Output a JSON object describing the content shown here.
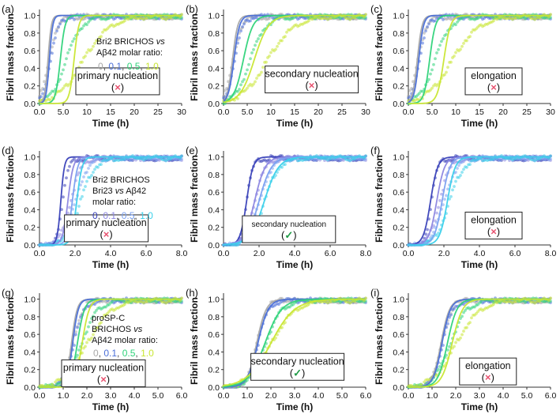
{
  "figure": {
    "ylabel": "Fibril mass fraction",
    "xlabel": "Time (h)",
    "colors": {
      "gray": "#a8a8a8",
      "blue": "#4a6fd8",
      "green": "#2fd37a",
      "yellow": "#c9e632",
      "dark_blue": "#3840b8",
      "lavender": "#8c86e0",
      "cyan": "#3bd0ea",
      "lime": "#8fe65a",
      "box_border": "#222222",
      "cross": "#e8506e",
      "check": "#1e9a45"
    }
  },
  "legends": {
    "a": {
      "line1": "Bri2 BRICHOS ",
      "vs": "vs",
      "line2": "Aβ42 molar ratio:",
      "v0": "0",
      "v1": "0.1",
      "v2": "0.5",
      "v3": "1.0",
      "sep": ", "
    },
    "d": {
      "line1": "Bri2 BRICHOS",
      "line2a": "Bri23 ",
      "vs": "vs",
      "line2b": " Aβ42",
      "line3": "molar ratio:",
      "v0": "0",
      "v1": "0.1",
      "v2": "0.5",
      "v3": "1.0",
      "sep": ", "
    },
    "g": {
      "line1": "proSP-C",
      "line2a": "BRICHOS ",
      "vs": "vs",
      "line3": "Aβ42 molar ratio:",
      "v0": "0",
      "v1": "0.1",
      "v2": "0.5",
      "v3": "1.0",
      "sep": ", "
    }
  },
  "chart_data": [
    {
      "id": "a",
      "label": "(a)",
      "type": "line",
      "model": "primary nucleation",
      "fit_ok": false,
      "mark": "×",
      "xlabel": "Time (h)",
      "ylabel": "Fibril mass fraction",
      "xlim": [
        0,
        30
      ],
      "ylim": [
        0,
        1.05
      ],
      "xticks": [
        0.0,
        5.0,
        10,
        15,
        20,
        25,
        30
      ],
      "xtick_labels": [
        "0.0",
        "5.0",
        "10",
        "15",
        "20",
        "25",
        "30"
      ],
      "yticks": [
        0.0,
        0.2,
        0.4,
        0.6,
        0.8,
        1.0
      ],
      "ytick_labels": [
        "0.0",
        "0.2",
        "0.4",
        "0.6",
        "0.8",
        "1.0"
      ],
      "series": [
        {
          "name": "0",
          "color": "#a8a8a8",
          "data_half_time": 2.0,
          "data_width": 0.9,
          "fit_half_time": 1.8,
          "fit_width": 0.35
        },
        {
          "name": "0.1",
          "color": "#4a6fd8",
          "data_half_time": 2.3,
          "data_width": 0.9,
          "fit_half_time": 2.1,
          "fit_width": 0.35
        },
        {
          "name": "0.5",
          "color": "#2fd37a",
          "data_half_time": 5.6,
          "data_width": 1.6,
          "fit_half_time": 4.4,
          "fit_width": 0.5
        },
        {
          "name": "1.0",
          "color": "#c9e632",
          "data_half_time": 9.2,
          "data_width": 2.8,
          "fit_half_time": 7.3,
          "fit_width": 0.5
        }
      ]
    },
    {
      "id": "b",
      "label": "(b)",
      "type": "line",
      "model": "secondary nucleation",
      "fit_ok": false,
      "mark": "×",
      "xlabel": "Time (h)",
      "ylabel": "Fibril mass fraction",
      "xlim": [
        0,
        30
      ],
      "ylim": [
        0,
        1.05
      ],
      "xticks": [
        0.0,
        5.0,
        10,
        15,
        20,
        25,
        30
      ],
      "xtick_labels": [
        "0.0",
        "5.0",
        "10",
        "15",
        "20",
        "25",
        "30"
      ],
      "yticks": [
        0.0,
        0.2,
        0.4,
        0.6,
        0.8,
        1.0
      ],
      "ytick_labels": [
        "0.0",
        "0.2",
        "0.4",
        "0.6",
        "0.8",
        "1.0"
      ],
      "series": [
        {
          "name": "0",
          "color": "#a8a8a8",
          "data_half_time": 2.0,
          "data_width": 0.9,
          "fit_half_time": 1.9,
          "fit_width": 0.55
        },
        {
          "name": "0.1",
          "color": "#4a6fd8",
          "data_half_time": 2.3,
          "data_width": 0.9,
          "fit_half_time": 2.2,
          "fit_width": 0.6
        },
        {
          "name": "0.5",
          "color": "#2fd37a",
          "data_half_time": 5.6,
          "data_width": 1.6,
          "fit_half_time": 4.2,
          "fit_width": 1.0
        },
        {
          "name": "1.0",
          "color": "#c9e632",
          "data_half_time": 9.2,
          "data_width": 2.8,
          "fit_half_time": 6.5,
          "fit_width": 1.5
        }
      ]
    },
    {
      "id": "c",
      "label": "(c)",
      "type": "line",
      "model": "elongation",
      "fit_ok": false,
      "mark": "×",
      "xlabel": "Time (h)",
      "ylabel": "Fibril mass fraction",
      "xlim": [
        0,
        30
      ],
      "ylim": [
        0,
        1.05
      ],
      "xticks": [
        0.0,
        5.0,
        10,
        15,
        20,
        25,
        30
      ],
      "xtick_labels": [
        "0.0",
        "5.0",
        "10",
        "15",
        "20",
        "25",
        "30"
      ],
      "yticks": [
        0.0,
        0.2,
        0.4,
        0.6,
        0.8,
        1.0
      ],
      "ytick_labels": [
        "0.0",
        "0.2",
        "0.4",
        "0.6",
        "0.8",
        "1.0"
      ],
      "series": [
        {
          "name": "0",
          "color": "#a8a8a8",
          "data_half_time": 2.0,
          "data_width": 0.9,
          "fit_half_time": 1.9,
          "fit_width": 0.5
        },
        {
          "name": "0.1",
          "color": "#4a6fd8",
          "data_half_time": 2.3,
          "data_width": 0.9,
          "fit_half_time": 2.2,
          "fit_width": 0.5
        },
        {
          "name": "0.5",
          "color": "#2fd37a",
          "data_half_time": 5.6,
          "data_width": 1.6,
          "fit_half_time": 4.5,
          "fit_width": 0.6
        },
        {
          "name": "1.0",
          "color": "#c9e632",
          "data_half_time": 9.2,
          "data_width": 2.8,
          "fit_half_time": 7.5,
          "fit_width": 0.7
        }
      ]
    },
    {
      "id": "d",
      "label": "(d)",
      "type": "line",
      "model": "primary nucleation",
      "fit_ok": false,
      "mark": "×",
      "xlabel": "Time (h)",
      "ylabel": "Fibril mass fraction",
      "xlim": [
        0,
        8
      ],
      "ylim": [
        0,
        1.05
      ],
      "xticks": [
        0.0,
        2.0,
        4.0,
        6.0,
        8.0
      ],
      "xtick_labels": [
        "0.0",
        "2.0",
        "4.0",
        "6.0",
        "8.0"
      ],
      "yticks": [
        0.0,
        0.2,
        0.4,
        0.6,
        0.8,
        1.0
      ],
      "ytick_labels": [
        "0.0",
        "0.2",
        "0.4",
        "0.6",
        "0.8",
        "1.0"
      ],
      "series": [
        {
          "name": "0",
          "color": "#3840b8",
          "data_half_time": 1.3,
          "data_width": 0.18,
          "fit_half_time": 1.2,
          "fit_width": 0.1
        },
        {
          "name": "0.1",
          "color": "#8c86e0",
          "data_half_time": 1.75,
          "data_width": 0.3,
          "fit_half_time": 1.6,
          "fit_width": 0.15
        },
        {
          "name": "0.5",
          "color": "#7aa0f0",
          "data_half_time": 2.0,
          "data_width": 0.35,
          "fit_half_time": 1.85,
          "fit_width": 0.15
        },
        {
          "name": "1.0",
          "color": "#3bd0ea",
          "data_half_time": 2.3,
          "data_width": 0.4,
          "fit_half_time": 2.1,
          "fit_width": 0.15
        }
      ]
    },
    {
      "id": "e",
      "label": "(e)",
      "type": "line",
      "model": "secondary nucleation",
      "fit_ok": true,
      "mark": "✓",
      "xlabel": "Time (h)",
      "ylabel": "Fibril mass fraction",
      "xlim": [
        0,
        8
      ],
      "ylim": [
        0,
        1.05
      ],
      "xticks": [
        0.0,
        2.0,
        4.0,
        6.0,
        8.0
      ],
      "xtick_labels": [
        "0.0",
        "2.0",
        "4.0",
        "6.0",
        "8.0"
      ],
      "yticks": [
        0.0,
        0.2,
        0.4,
        0.6,
        0.8,
        1.0
      ],
      "ytick_labels": [
        "0.0",
        "0.2",
        "0.4",
        "0.6",
        "0.8",
        "1.0"
      ],
      "series": [
        {
          "name": "0",
          "color": "#3840b8",
          "data_half_time": 1.3,
          "data_width": 0.18,
          "fit_half_time": 1.3,
          "fit_width": 0.18
        },
        {
          "name": "0.1",
          "color": "#8c86e0",
          "data_half_time": 1.75,
          "data_width": 0.3,
          "fit_half_time": 1.75,
          "fit_width": 0.3
        },
        {
          "name": "0.5",
          "color": "#7aa0f0",
          "data_half_time": 2.0,
          "data_width": 0.35,
          "fit_half_time": 2.0,
          "fit_width": 0.35
        },
        {
          "name": "1.0",
          "color": "#3bd0ea",
          "data_half_time": 2.3,
          "data_width": 0.4,
          "fit_half_time": 2.3,
          "fit_width": 0.4
        }
      ]
    },
    {
      "id": "f",
      "label": "(f)",
      "type": "line",
      "model": "elongation",
      "fit_ok": false,
      "mark": "×",
      "xlabel": "Time (h)",
      "ylabel": "Fibril mass fraction",
      "xlim": [
        0,
        8
      ],
      "ylim": [
        0,
        1.05
      ],
      "xticks": [
        0.0,
        2.0,
        4.0,
        6.0,
        8.0
      ],
      "xtick_labels": [
        "0.0",
        "2.0",
        "4.0",
        "6.0",
        "8.0"
      ],
      "yticks": [
        0.0,
        0.2,
        0.4,
        0.6,
        0.8,
        1.0
      ],
      "ytick_labels": [
        "0.0",
        "0.2",
        "0.4",
        "0.6",
        "0.8",
        "1.0"
      ],
      "series": [
        {
          "name": "0",
          "color": "#3840b8",
          "data_half_time": 1.3,
          "data_width": 0.18,
          "fit_half_time": 1.25,
          "fit_width": 0.2
        },
        {
          "name": "0.1",
          "color": "#8c86e0",
          "data_half_time": 1.75,
          "data_width": 0.3,
          "fit_half_time": 1.6,
          "fit_width": 0.22
        },
        {
          "name": "0.5",
          "color": "#7aa0f0",
          "data_half_time": 2.0,
          "data_width": 0.35,
          "fit_half_time": 1.9,
          "fit_width": 0.22
        },
        {
          "name": "1.0",
          "color": "#3bd0ea",
          "data_half_time": 2.3,
          "data_width": 0.4,
          "fit_half_time": 2.2,
          "fit_width": 0.22
        }
      ]
    },
    {
      "id": "g",
      "label": "(g)",
      "type": "line",
      "model": "primary nucleation",
      "fit_ok": false,
      "mark": "×",
      "xlabel": "Time (h)",
      "ylabel": "Fibril mass fraction",
      "xlim": [
        0,
        6
      ],
      "ylim": [
        0,
        1.05
      ],
      "xticks": [
        0.0,
        1.0,
        2.0,
        3.0,
        4.0,
        5.0,
        6.0
      ],
      "xtick_labels": [
        "0.0",
        "1.0",
        "2.0",
        "3.0",
        "4.0",
        "5.0",
        "6.0"
      ],
      "yticks": [
        0.0,
        0.2,
        0.4,
        0.6,
        0.8,
        1.0
      ],
      "ytick_labels": [
        "0.0",
        "0.2",
        "0.4",
        "0.6",
        "0.8",
        "1.0"
      ],
      "series": [
        {
          "name": "0",
          "color": "#a8a8a8",
          "data_half_time": 1.4,
          "data_width": 0.2,
          "fit_half_time": 1.35,
          "fit_width": 0.12
        },
        {
          "name": "0.1",
          "color": "#4a6fd8",
          "data_half_time": 1.45,
          "data_width": 0.22,
          "fit_half_time": 1.4,
          "fit_width": 0.12
        },
        {
          "name": "0.5",
          "color": "#2fd37a",
          "data_half_time": 1.75,
          "data_width": 0.35,
          "fit_half_time": 1.6,
          "fit_width": 0.15
        },
        {
          "name": "1.0",
          "color": "#c9e632",
          "data_half_time": 2.0,
          "data_width": 0.5,
          "fit_half_time": 1.8,
          "fit_width": 0.15
        }
      ]
    },
    {
      "id": "h",
      "label": "(h)",
      "type": "line",
      "model": "secondary nucleation",
      "fit_ok": true,
      "mark": "✓",
      "xlabel": "Time (h)",
      "ylabel": "Fibril mass fraction",
      "xlim": [
        0,
        6
      ],
      "ylim": [
        0,
        1.05
      ],
      "xticks": [
        0.0,
        1.0,
        2.0,
        3.0,
        4.0,
        5.0,
        6.0
      ],
      "xtick_labels": [
        "0.0",
        "1.0",
        "2.0",
        "3.0",
        "4.0",
        "5.0",
        "6.0"
      ],
      "yticks": [
        0.0,
        0.2,
        0.4,
        0.6,
        0.8,
        1.0
      ],
      "ytick_labels": [
        "0.0",
        "0.2",
        "0.4",
        "0.6",
        "0.8",
        "1.0"
      ],
      "series": [
        {
          "name": "0",
          "color": "#a8a8a8",
          "data_half_time": 1.4,
          "data_width": 0.2,
          "fit_half_time": 1.4,
          "fit_width": 0.2
        },
        {
          "name": "0.1",
          "color": "#4a6fd8",
          "data_half_time": 1.45,
          "data_width": 0.22,
          "fit_half_time": 1.45,
          "fit_width": 0.22
        },
        {
          "name": "0.5",
          "color": "#2fd37a",
          "data_half_time": 1.75,
          "data_width": 0.35,
          "fit_half_time": 1.75,
          "fit_width": 0.35
        },
        {
          "name": "1.0",
          "color": "#c9e632",
          "data_half_time": 2.0,
          "data_width": 0.5,
          "fit_half_time": 2.0,
          "fit_width": 0.5
        }
      ]
    },
    {
      "id": "i",
      "label": "(i)",
      "type": "line",
      "model": "elongation",
      "fit_ok": false,
      "mark": "×",
      "xlabel": "Time (h)",
      "ylabel": "Fibril mass fraction",
      "xlim": [
        0,
        6
      ],
      "ylim": [
        0,
        1.05
      ],
      "xticks": [
        0.0,
        1.0,
        2.0,
        3.0,
        4.0,
        5.0,
        6.0
      ],
      "xtick_labels": [
        "0.0",
        "1.0",
        "2.0",
        "3.0",
        "4.0",
        "5.0",
        "6.0"
      ],
      "yticks": [
        0.0,
        0.2,
        0.4,
        0.6,
        0.8,
        1.0
      ],
      "ytick_labels": [
        "0.0",
        "0.2",
        "0.4",
        "0.6",
        "0.8",
        "1.0"
      ],
      "series": [
        {
          "name": "0",
          "color": "#a8a8a8",
          "data_half_time": 1.4,
          "data_width": 0.2,
          "fit_half_time": 1.38,
          "fit_width": 0.18
        },
        {
          "name": "0.1",
          "color": "#4a6fd8",
          "data_half_time": 1.45,
          "data_width": 0.22,
          "fit_half_time": 1.42,
          "fit_width": 0.18
        },
        {
          "name": "0.5",
          "color": "#2fd37a",
          "data_half_time": 1.75,
          "data_width": 0.35,
          "fit_half_time": 1.65,
          "fit_width": 0.2
        },
        {
          "name": "1.0",
          "color": "#c9e632",
          "data_half_time": 2.0,
          "data_width": 0.5,
          "fit_half_time": 1.85,
          "fit_width": 0.22
        }
      ]
    }
  ]
}
